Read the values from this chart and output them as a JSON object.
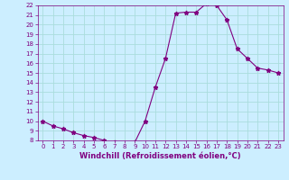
{
  "hours": [
    0,
    1,
    2,
    3,
    4,
    5,
    6,
    7,
    8,
    9,
    10,
    11,
    12,
    13,
    14,
    15,
    16,
    17,
    18,
    19,
    20,
    21,
    22,
    23
  ],
  "values": [
    10.0,
    9.5,
    9.2,
    8.8,
    8.5,
    8.3,
    8.0,
    7.8,
    7.7,
    7.8,
    10.0,
    13.5,
    16.5,
    21.2,
    21.3,
    21.3,
    22.2,
    22.0,
    20.5,
    17.5,
    16.5,
    15.5,
    15.3,
    15.0
  ],
  "xlabel": "Windchill (Refroidissement éolien,°C)",
  "ylim": [
    8,
    22
  ],
  "xlim_min": -0.5,
  "xlim_max": 23.5,
  "yticks": [
    8,
    9,
    10,
    11,
    12,
    13,
    14,
    15,
    16,
    17,
    18,
    19,
    20,
    21,
    22
  ],
  "xticks": [
    0,
    1,
    2,
    3,
    4,
    5,
    6,
    7,
    8,
    9,
    10,
    11,
    12,
    13,
    14,
    15,
    16,
    17,
    18,
    19,
    20,
    21,
    22,
    23
  ],
  "line_color": "#800080",
  "marker": "*",
  "bg_color": "#cceeff",
  "grid_color": "#aadddd",
  "font_color": "#800080",
  "tick_fontsize": 5.0,
  "xlabel_fontsize": 6.0
}
